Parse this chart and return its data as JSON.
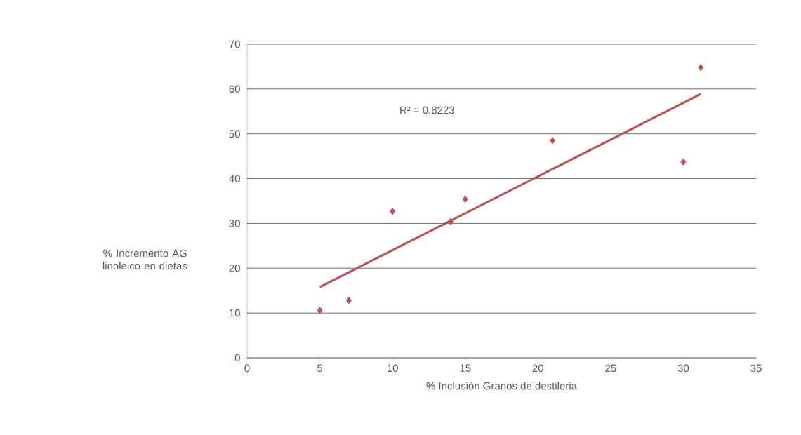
{
  "chart_data": {
    "type": "scatter",
    "xlabel": "% Inclusión Granos de destileria",
    "ylabel": "% Incremento AG linoleico en dietas",
    "xlim": [
      0,
      35
    ],
    "ylim": [
      0,
      70
    ],
    "xticks": [
      0,
      5,
      10,
      15,
      20,
      25,
      30,
      35
    ],
    "yticks": [
      0,
      10,
      20,
      30,
      40,
      50,
      60,
      70
    ],
    "grid": "y",
    "series": [
      {
        "color": "#c0504d",
        "marker": "diamond",
        "x": [
          5,
          7,
          10,
          14,
          15,
          21,
          30,
          31.2
        ],
        "values": [
          10.6,
          12.8,
          32.7,
          30.4,
          35.4,
          48.5,
          43.7,
          64.8
        ]
      },
      {
        "type": "line",
        "color": "#c0504d",
        "marker": "none",
        "line_style": "solid",
        "x": [
          5,
          31.2
        ],
        "values": [
          15.8,
          58.9
        ]
      }
    ],
    "annotations": [
      "R² = 0.8223"
    ]
  }
}
